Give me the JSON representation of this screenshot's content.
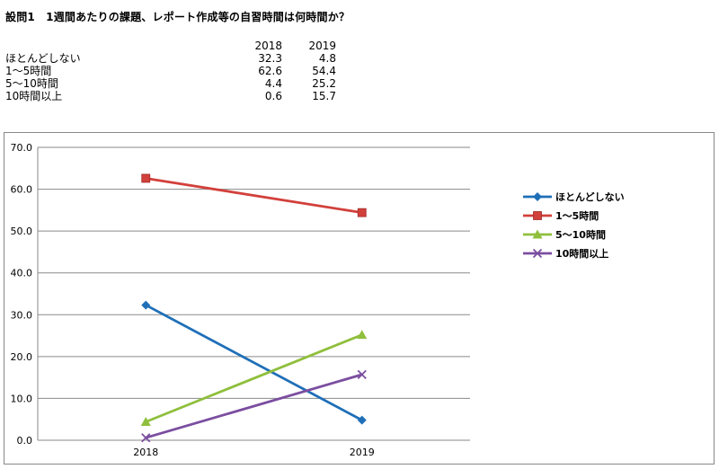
{
  "title": "設問1　1週間あたりの課題、レポート作成等の自習時間は何時間か？",
  "table": {
    "headers": [
      "2018",
      "2019"
    ],
    "rows": [
      {
        "label": "ほとんどしない",
        "values": [
          "32.3",
          "4.8"
        ]
      },
      {
        "label": "1～5時間",
        "values": [
          "62.6",
          "54.4"
        ]
      },
      {
        "label": "5～10時間",
        "values": [
          "4.4",
          "25.2"
        ]
      },
      {
        "label": "10時間以上",
        "values": [
          "0.6",
          "15.7"
        ]
      }
    ]
  },
  "chart_data": {
    "type": "line",
    "categories": [
      "2018",
      "2019"
    ],
    "ylim": [
      0,
      70
    ],
    "yticks": [
      "0.0",
      "10.0",
      "20.0",
      "30.0",
      "40.0",
      "50.0",
      "60.0",
      "70.0"
    ],
    "grid": true,
    "legend_position": "right",
    "series": [
      {
        "name": "ほとんどしない",
        "values": [
          32.3,
          4.8
        ],
        "color": "#1f6fb8",
        "marker": "diamond"
      },
      {
        "name": "1～5時間",
        "values": [
          62.6,
          54.4
        ],
        "color": "#d2403b",
        "marker": "square"
      },
      {
        "name": "5～10時間",
        "values": [
          4.4,
          25.2
        ],
        "color": "#8fbf3c",
        "marker": "triangle"
      },
      {
        "name": "10時間以上",
        "values": [
          0.6,
          15.7
        ],
        "color": "#7b4ea0",
        "marker": "x"
      }
    ]
  }
}
